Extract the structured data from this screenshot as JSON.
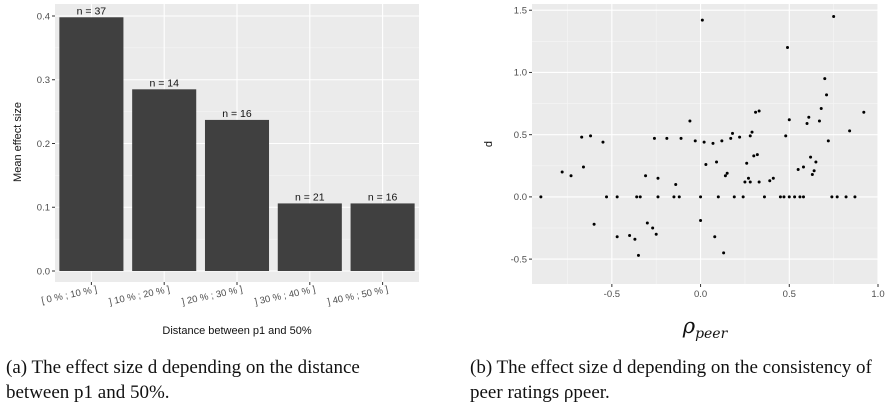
{
  "chart_data": [
    {
      "type": "bar",
      "title": "",
      "xlabel": "Distance between p1 and 50%",
      "ylabel": "Mean effect size",
      "categories": [
        "[ 0 % ; 10 % ]",
        "] 10 % ; 20 % ]",
        "] 20 % ; 30 % ]",
        "] 30 % ; 40 % ]",
        "] 40 % ; 50 % ]"
      ],
      "values": [
        0.398,
        0.285,
        0.237,
        0.106,
        0.106
      ],
      "bar_labels": [
        "n =  37",
        "n =  14",
        "n =  16",
        "n =  21",
        "n =  16"
      ],
      "yticks": [
        0.0,
        0.1,
        0.2,
        0.3,
        0.4
      ],
      "ytick_labels": [
        "0.0",
        "0.1",
        "0.2",
        "0.3",
        "0.4"
      ],
      "ylim": [
        0,
        0.4
      ],
      "grid": true,
      "bar_color": "#404040",
      "panel_color": "#ebebeb"
    },
    {
      "type": "scatter",
      "title": "",
      "xlabel": "ρ",
      "xlabel_sub": "peer",
      "ylabel": "d",
      "xlim": [
        -0.95,
        1.0
      ],
      "ylim": [
        -0.7,
        1.55
      ],
      "xticks": [
        -0.5,
        0.0,
        0.5,
        1.0
      ],
      "xtick_labels": [
        "-0.5",
        "0.0",
        "0.5",
        "1.0"
      ],
      "yticks": [
        -0.5,
        0.0,
        0.5,
        1.0,
        1.5
      ],
      "ytick_labels": [
        "-0.5",
        "0.0",
        "0.5",
        "1.0",
        "1.5"
      ],
      "grid": true,
      "point_color": "#000000",
      "panel_color": "#ebebeb",
      "points": [
        [
          -0.9,
          0.0
        ],
        [
          -0.78,
          0.2
        ],
        [
          -0.73,
          0.17
        ],
        [
          -0.67,
          0.48
        ],
        [
          -0.66,
          0.24
        ],
        [
          -0.62,
          0.49
        ],
        [
          -0.6,
          -0.22
        ],
        [
          -0.55,
          0.44
        ],
        [
          -0.53,
          0.0
        ],
        [
          -0.47,
          0.0
        ],
        [
          -0.47,
          -0.32
        ],
        [
          -0.4,
          -0.31
        ],
        [
          -0.37,
          -0.34
        ],
        [
          -0.36,
          0.0
        ],
        [
          -0.35,
          -0.47
        ],
        [
          -0.34,
          0.0
        ],
        [
          -0.31,
          0.17
        ],
        [
          -0.3,
          -0.21
        ],
        [
          -0.27,
          -0.25
        ],
        [
          -0.26,
          0.47
        ],
        [
          -0.25,
          -0.3
        ],
        [
          -0.24,
          0.0
        ],
        [
          -0.24,
          0.15
        ],
        [
          -0.19,
          0.47
        ],
        [
          -0.15,
          0.0
        ],
        [
          -0.14,
          0.1
        ],
        [
          -0.12,
          0.0
        ],
        [
          -0.11,
          0.47
        ],
        [
          -0.06,
          0.61
        ],
        [
          -0.03,
          0.45
        ],
        [
          0.0,
          0.0
        ],
        [
          0.0,
          -0.19
        ],
        [
          0.01,
          1.42
        ],
        [
          0.02,
          0.44
        ],
        [
          0.03,
          0.26
        ],
        [
          0.07,
          0.43
        ],
        [
          0.08,
          -0.32
        ],
        [
          0.09,
          0.28
        ],
        [
          0.1,
          0.0
        ],
        [
          0.12,
          0.45
        ],
        [
          0.13,
          -0.45
        ],
        [
          0.14,
          0.17
        ],
        [
          0.15,
          0.19
        ],
        [
          0.17,
          0.47
        ],
        [
          0.18,
          0.51
        ],
        [
          0.19,
          0.0
        ],
        [
          0.22,
          0.48
        ],
        [
          0.24,
          0.0
        ],
        [
          0.25,
          0.12
        ],
        [
          0.26,
          0.27
        ],
        [
          0.27,
          0.15
        ],
        [
          0.28,
          0.12
        ],
        [
          0.28,
          0.49
        ],
        [
          0.29,
          0.52
        ],
        [
          0.3,
          0.33
        ],
        [
          0.31,
          0.68
        ],
        [
          0.32,
          0.34
        ],
        [
          0.33,
          0.69
        ],
        [
          0.33,
          0.12
        ],
        [
          0.36,
          0.0
        ],
        [
          0.39,
          0.13
        ],
        [
          0.41,
          0.15
        ],
        [
          0.45,
          0.0
        ],
        [
          0.47,
          0.0
        ],
        [
          0.48,
          0.49
        ],
        [
          0.49,
          1.2
        ],
        [
          0.5,
          0.62
        ],
        [
          0.5,
          0.0
        ],
        [
          0.53,
          0.0
        ],
        [
          0.55,
          0.22
        ],
        [
          0.56,
          0.0
        ],
        [
          0.58,
          0.24
        ],
        [
          0.58,
          0.0
        ],
        [
          0.6,
          0.59
        ],
        [
          0.61,
          0.64
        ],
        [
          0.62,
          0.32
        ],
        [
          0.63,
          0.18
        ],
        [
          0.64,
          0.21
        ],
        [
          0.65,
          0.28
        ],
        [
          0.67,
          0.61
        ],
        [
          0.68,
          0.71
        ],
        [
          0.7,
          0.95
        ],
        [
          0.71,
          0.82
        ],
        [
          0.72,
          0.45
        ],
        [
          0.74,
          0.0
        ],
        [
          0.75,
          1.45
        ],
        [
          0.77,
          0.0
        ],
        [
          0.82,
          0.0
        ],
        [
          0.84,
          0.53
        ],
        [
          0.87,
          0.0
        ],
        [
          0.92,
          0.68
        ]
      ]
    }
  ],
  "captions": {
    "a": "(a) The effect size d depending on the distance between p1 and 50%.",
    "b": "(b) The effect size d depending on the consistency of peer ratings ρpeer."
  }
}
